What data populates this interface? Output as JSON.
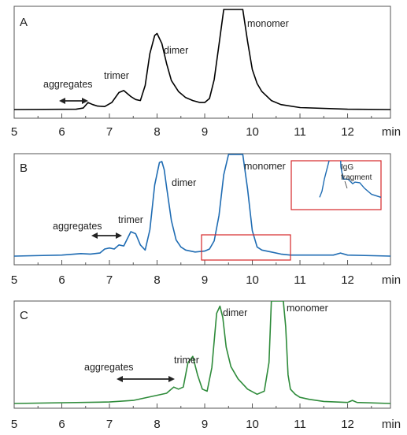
{
  "chart_data": [
    {
      "type": "line",
      "panel_label": "A",
      "color": "#000000",
      "xlim": [
        5,
        12.9
      ],
      "ylim": [
        0,
        100
      ],
      "x_ticks": [
        "5",
        "6",
        "7",
        "8",
        "9",
        "10",
        "11",
        "12"
      ],
      "x_unit": "min",
      "annotations": {
        "aggregates": "aggregates",
        "trimer": "trimer",
        "dimer": "dimer",
        "monomer": "monomer"
      },
      "x": [
        5.0,
        6.3,
        6.45,
        6.55,
        6.65,
        6.75,
        6.9,
        7.05,
        7.2,
        7.3,
        7.45,
        7.55,
        7.65,
        7.75,
        7.85,
        7.95,
        8.0,
        8.1,
        8.2,
        8.3,
        8.45,
        8.6,
        8.75,
        8.9,
        9.0,
        9.1,
        9.2,
        9.3,
        9.4,
        9.5,
        9.8,
        9.9,
        10.0,
        10.1,
        10.2,
        10.4,
        10.6,
        11.0,
        12.0,
        12.9
      ],
      "y": [
        0,
        0.3,
        1.5,
        7,
        5,
        3.5,
        3,
        7,
        17,
        19,
        13,
        10,
        9,
        24,
        56,
        74,
        76,
        66,
        46,
        29,
        18,
        12,
        9,
        7,
        7,
        11,
        30,
        65,
        100,
        100,
        100,
        68,
        40,
        26,
        18,
        9,
        5,
        2,
        0.3,
        0
      ]
    },
    {
      "type": "line",
      "panel_label": "B",
      "color": "#1f6cb3",
      "xlim": [
        5,
        12.9
      ],
      "ylim": [
        0,
        100
      ],
      "x_ticks": [
        "5",
        "6",
        "7",
        "8",
        "9",
        "10",
        "11",
        "12"
      ],
      "x_unit": "min",
      "annotations": {
        "aggregates": "aggregates",
        "trimer": "trimer",
        "dimer": "dimer",
        "monomer": "monomer",
        "inset_label_1": "IgG",
        "inset_label_2": "fragment"
      },
      "x": [
        5.0,
        6.0,
        6.4,
        6.6,
        6.8,
        6.9,
        7.0,
        7.1,
        7.2,
        7.3,
        7.45,
        7.55,
        7.65,
        7.75,
        7.85,
        7.95,
        8.05,
        8.1,
        8.15,
        8.2,
        8.3,
        8.4,
        8.5,
        8.6,
        8.8,
        9.0,
        9.1,
        9.2,
        9.3,
        9.4,
        9.5,
        9.8,
        9.9,
        10.0,
        10.1,
        10.2,
        10.4,
        10.6,
        10.8,
        11.0,
        11.7,
        11.85,
        12.0,
        12.9
      ],
      "y": [
        0,
        1,
        2.5,
        2,
        3,
        7,
        8,
        7,
        11,
        10,
        24,
        22,
        11,
        6,
        26,
        70,
        92,
        93,
        85,
        68,
        35,
        16,
        9,
        6,
        4,
        5,
        7,
        15,
        40,
        80,
        100,
        100,
        66,
        25,
        9,
        6,
        4,
        2,
        1,
        1,
        1,
        3,
        1,
        0
      ]
    },
    {
      "type": "line",
      "panel_label": "C",
      "color": "#2e8b3a",
      "xlim": [
        5,
        12.9
      ],
      "ylim": [
        0,
        100
      ],
      "x_ticks": [
        "5",
        "6",
        "7",
        "8",
        "9",
        "10",
        "11",
        "12"
      ],
      "x_unit": "min",
      "annotations": {
        "aggregates": "aggregates",
        "trimer": "trimer",
        "dimer": "dimer",
        "monomer": "monomer"
      },
      "x": [
        5.0,
        7.0,
        7.5,
        8.0,
        8.2,
        8.35,
        8.45,
        8.55,
        8.65,
        8.75,
        8.85,
        8.95,
        9.05,
        9.15,
        9.25,
        9.32,
        9.38,
        9.45,
        9.55,
        9.7,
        9.9,
        10.1,
        10.25,
        10.35,
        10.4,
        10.45,
        10.65,
        10.7,
        10.75,
        10.8,
        10.9,
        11.0,
        11.2,
        11.5,
        12.0,
        12.1,
        12.2,
        12.9
      ],
      "y": [
        0,
        1.5,
        3,
        8,
        10,
        16,
        14,
        16,
        40,
        46,
        28,
        14,
        12,
        35,
        88,
        95,
        84,
        55,
        36,
        24,
        14,
        9,
        12,
        40,
        100,
        100,
        100,
        75,
        28,
        14,
        9,
        6,
        4,
        2,
        1,
        3,
        1,
        0
      ]
    }
  ]
}
